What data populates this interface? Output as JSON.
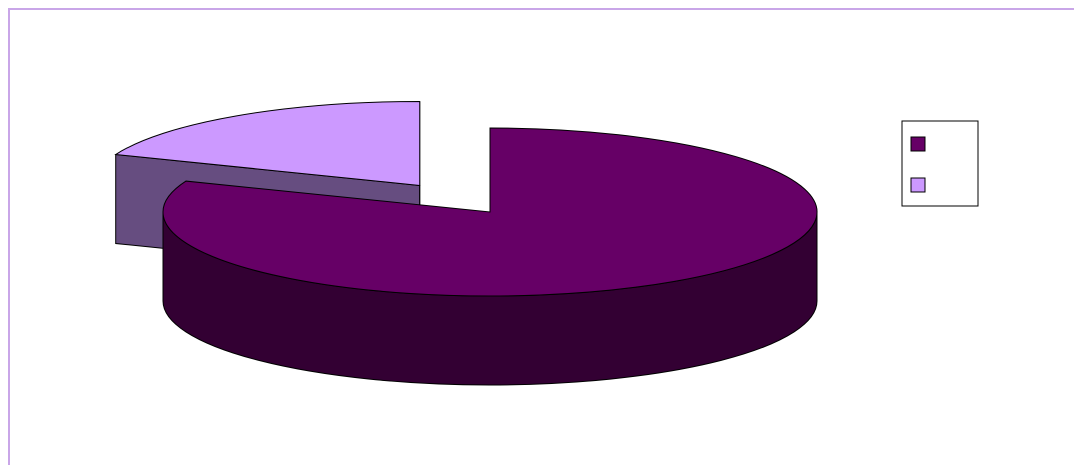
{
  "chart_data": {
    "type": "pie",
    "style": "3d-exploded",
    "title": "",
    "slices": [
      {
        "label": "",
        "value": 81,
        "color": "#660066",
        "side_color": "#330033"
      },
      {
        "label": "",
        "value": 19,
        "color": "#cc99ff",
        "side_color": "#664d80"
      }
    ],
    "legend": {
      "placement": "right"
    }
  }
}
